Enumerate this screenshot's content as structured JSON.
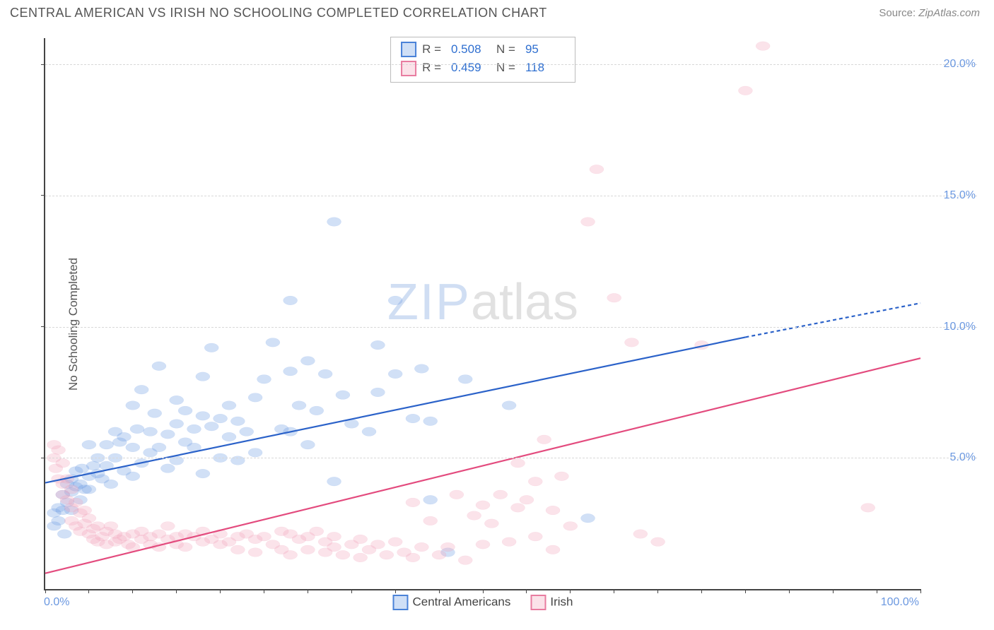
{
  "title": "CENTRAL AMERICAN VS IRISH NO SCHOOLING COMPLETED CORRELATION CHART",
  "source_label": "Source:",
  "source_value": "ZipAtlas.com",
  "ylabel": "No Schooling Completed",
  "watermark_1": "ZIP",
  "watermark_2": "atlas",
  "chart": {
    "type": "scatter",
    "xlim": [
      0,
      100
    ],
    "ylim": [
      0,
      21
    ],
    "xticks": [
      {
        "v": 0,
        "label": "0.0%"
      },
      {
        "v": 100,
        "label": "100.0%"
      }
    ],
    "xtick_minor_step": 5,
    "yticks": [
      {
        "v": 5,
        "label": "5.0%"
      },
      {
        "v": 10,
        "label": "10.0%"
      },
      {
        "v": 15,
        "label": "15.0%"
      },
      {
        "v": 20,
        "label": "20.0%"
      }
    ],
    "grid_color": "#d8d8d8",
    "axis_color": "#444444",
    "background_color": "#ffffff",
    "tick_label_color": "#6b98e0",
    "marker_radius": 10,
    "marker_fill_opacity": 0.32,
    "marker_stroke_opacity": 0.7,
    "marker_stroke_width": 1.5,
    "regression_line_width": 2.2,
    "series": [
      {
        "id": "central_americans",
        "label": "Central Americans",
        "color": "#6fa0e4",
        "stroke": "#4a82d8",
        "line_color": "#2b62c9",
        "r": "0.508",
        "n": "95",
        "regression": {
          "x0": 0,
          "y0": 4.05,
          "x1": 80,
          "y1": 9.6,
          "ext_x1": 100,
          "ext_y1": 10.9
        },
        "points": [
          [
            1,
            2.4
          ],
          [
            1,
            2.9
          ],
          [
            1.5,
            3.1
          ],
          [
            1.5,
            2.6
          ],
          [
            2,
            3.0
          ],
          [
            2,
            3.6
          ],
          [
            2.2,
            2.1
          ],
          [
            2.5,
            3.3
          ],
          [
            2.5,
            4.0
          ],
          [
            3,
            3.0
          ],
          [
            3,
            3.7
          ],
          [
            3,
            4.2
          ],
          [
            3.5,
            3.9
          ],
          [
            3.5,
            4.5
          ],
          [
            4,
            3.4
          ],
          [
            4,
            4.0
          ],
          [
            4.2,
            4.6
          ],
          [
            4.5,
            3.8
          ],
          [
            5,
            3.8
          ],
          [
            5,
            4.3
          ],
          [
            5,
            5.5
          ],
          [
            5.5,
            4.7
          ],
          [
            6,
            4.4
          ],
          [
            6,
            5.0
          ],
          [
            6.5,
            4.2
          ],
          [
            7,
            4.7
          ],
          [
            7,
            5.5
          ],
          [
            7.5,
            4.0
          ],
          [
            8,
            5.0
          ],
          [
            8,
            6.0
          ],
          [
            8.5,
            5.6
          ],
          [
            9,
            4.5
          ],
          [
            9,
            5.8
          ],
          [
            10,
            4.3
          ],
          [
            10,
            5.4
          ],
          [
            10,
            7.0
          ],
          [
            10.5,
            6.1
          ],
          [
            11,
            4.8
          ],
          [
            11,
            7.6
          ],
          [
            12,
            5.2
          ],
          [
            12,
            6.0
          ],
          [
            12.5,
            6.7
          ],
          [
            13,
            5.4
          ],
          [
            13,
            8.5
          ],
          [
            14,
            4.6
          ],
          [
            14,
            5.9
          ],
          [
            15,
            4.9
          ],
          [
            15,
            6.3
          ],
          [
            15,
            7.2
          ],
          [
            16,
            5.6
          ],
          [
            16,
            6.8
          ],
          [
            17,
            5.4
          ],
          [
            17,
            6.1
          ],
          [
            18,
            4.4
          ],
          [
            18,
            6.6
          ],
          [
            18,
            8.1
          ],
          [
            19,
            6.2
          ],
          [
            19,
            9.2
          ],
          [
            20,
            5.0
          ],
          [
            20,
            6.5
          ],
          [
            21,
            5.8
          ],
          [
            21,
            7.0
          ],
          [
            22,
            4.9
          ],
          [
            22,
            6.4
          ],
          [
            23,
            6.0
          ],
          [
            24,
            5.2
          ],
          [
            24,
            7.3
          ],
          [
            25,
            8.0
          ],
          [
            26,
            9.4
          ],
          [
            27,
            6.1
          ],
          [
            28,
            6.0
          ],
          [
            28,
            8.3
          ],
          [
            28,
            11.0
          ],
          [
            29,
            7.0
          ],
          [
            30,
            5.5
          ],
          [
            30,
            8.7
          ],
          [
            31,
            6.8
          ],
          [
            32,
            8.2
          ],
          [
            33,
            4.1
          ],
          [
            33,
            14.0
          ],
          [
            34,
            7.4
          ],
          [
            35,
            6.3
          ],
          [
            37,
            6.0
          ],
          [
            38,
            7.5
          ],
          [
            38,
            9.3
          ],
          [
            40,
            8.2
          ],
          [
            40,
            11.0
          ],
          [
            42,
            6.5
          ],
          [
            43,
            8.4
          ],
          [
            44,
            3.4
          ],
          [
            44,
            6.4
          ],
          [
            46,
            1.4
          ],
          [
            48,
            8.0
          ],
          [
            53,
            7.0
          ],
          [
            62,
            2.7
          ]
        ]
      },
      {
        "id": "irish",
        "label": "Irish",
        "color": "#f3a8bd",
        "stroke": "#e87ca0",
        "line_color": "#e34b7e",
        "r": "0.459",
        "n": "118",
        "regression": {
          "x0": 0,
          "y0": 0.6,
          "x1": 100,
          "y1": 8.8,
          "ext_x1": 100,
          "ext_y1": 8.8
        },
        "points": [
          [
            1,
            5.5
          ],
          [
            1,
            5.0
          ],
          [
            1.2,
            4.6
          ],
          [
            1.5,
            4.2
          ],
          [
            1.5,
            5.3
          ],
          [
            2,
            4.0
          ],
          [
            2,
            3.6
          ],
          [
            2,
            4.8
          ],
          [
            2.5,
            3.4
          ],
          [
            2.5,
            4.2
          ],
          [
            3,
            3.1
          ],
          [
            3,
            3.8
          ],
          [
            3,
            2.6
          ],
          [
            3.5,
            3.3
          ],
          [
            3.5,
            2.4
          ],
          [
            4,
            2.9
          ],
          [
            4,
            2.2
          ],
          [
            4.5,
            2.5
          ],
          [
            4.5,
            3.0
          ],
          [
            5,
            2.1
          ],
          [
            5,
            2.7
          ],
          [
            5.5,
            2.3
          ],
          [
            5.5,
            1.9
          ],
          [
            6,
            2.4
          ],
          [
            6,
            1.8
          ],
          [
            6.5,
            2.0
          ],
          [
            7,
            2.2
          ],
          [
            7,
            1.7
          ],
          [
            7.5,
            2.4
          ],
          [
            8,
            1.8
          ],
          [
            8,
            2.1
          ],
          [
            8.5,
            1.9
          ],
          [
            9,
            2.0
          ],
          [
            9.5,
            1.7
          ],
          [
            10,
            2.1
          ],
          [
            10,
            1.6
          ],
          [
            11,
            1.9
          ],
          [
            11,
            2.2
          ],
          [
            12,
            1.7
          ],
          [
            12,
            2.0
          ],
          [
            13,
            2.1
          ],
          [
            13,
            1.6
          ],
          [
            14,
            1.9
          ],
          [
            14,
            2.4
          ],
          [
            15,
            1.7
          ],
          [
            15,
            2.0
          ],
          [
            16,
            2.1
          ],
          [
            16,
            1.6
          ],
          [
            17,
            2.0
          ],
          [
            18,
            1.8
          ],
          [
            18,
            2.2
          ],
          [
            19,
            1.9
          ],
          [
            20,
            1.7
          ],
          [
            20,
            2.1
          ],
          [
            21,
            1.8
          ],
          [
            22,
            2.0
          ],
          [
            22,
            1.5
          ],
          [
            23,
            2.1
          ],
          [
            24,
            1.9
          ],
          [
            24,
            1.4
          ],
          [
            25,
            2.0
          ],
          [
            26,
            1.7
          ],
          [
            27,
            2.2
          ],
          [
            27,
            1.5
          ],
          [
            28,
            2.1
          ],
          [
            28,
            1.3
          ],
          [
            29,
            1.9
          ],
          [
            30,
            2.0
          ],
          [
            30,
            1.5
          ],
          [
            31,
            2.2
          ],
          [
            32,
            1.4
          ],
          [
            32,
            1.8
          ],
          [
            33,
            1.6
          ],
          [
            33,
            2.0
          ],
          [
            34,
            1.3
          ],
          [
            35,
            1.7
          ],
          [
            36,
            1.9
          ],
          [
            36,
            1.2
          ],
          [
            37,
            1.5
          ],
          [
            38,
            1.7
          ],
          [
            39,
            1.3
          ],
          [
            40,
            1.8
          ],
          [
            41,
            1.4
          ],
          [
            42,
            3.3
          ],
          [
            42,
            1.2
          ],
          [
            43,
            1.6
          ],
          [
            44,
            2.6
          ],
          [
            45,
            1.3
          ],
          [
            46,
            1.6
          ],
          [
            47,
            3.6
          ],
          [
            48,
            1.1
          ],
          [
            49,
            2.8
          ],
          [
            50,
            3.2
          ],
          [
            50,
            1.7
          ],
          [
            51,
            2.5
          ],
          [
            52,
            3.6
          ],
          [
            53,
            1.8
          ],
          [
            54,
            3.1
          ],
          [
            54,
            4.8
          ],
          [
            55,
            3.4
          ],
          [
            56,
            4.1
          ],
          [
            56,
            2.0
          ],
          [
            57,
            5.7
          ],
          [
            58,
            3.0
          ],
          [
            58,
            1.5
          ],
          [
            59,
            4.3
          ],
          [
            60,
            2.4
          ],
          [
            62,
            14.0
          ],
          [
            63,
            16.0
          ],
          [
            65,
            11.1
          ],
          [
            67,
            9.4
          ],
          [
            68,
            2.1
          ],
          [
            70,
            1.8
          ],
          [
            75,
            9.3
          ],
          [
            80,
            19.0
          ],
          [
            82,
            20.7
          ],
          [
            94,
            3.1
          ]
        ]
      }
    ],
    "legend_top": {
      "r_label": "R =",
      "n_label": "N ="
    },
    "legend_bottom": true
  }
}
